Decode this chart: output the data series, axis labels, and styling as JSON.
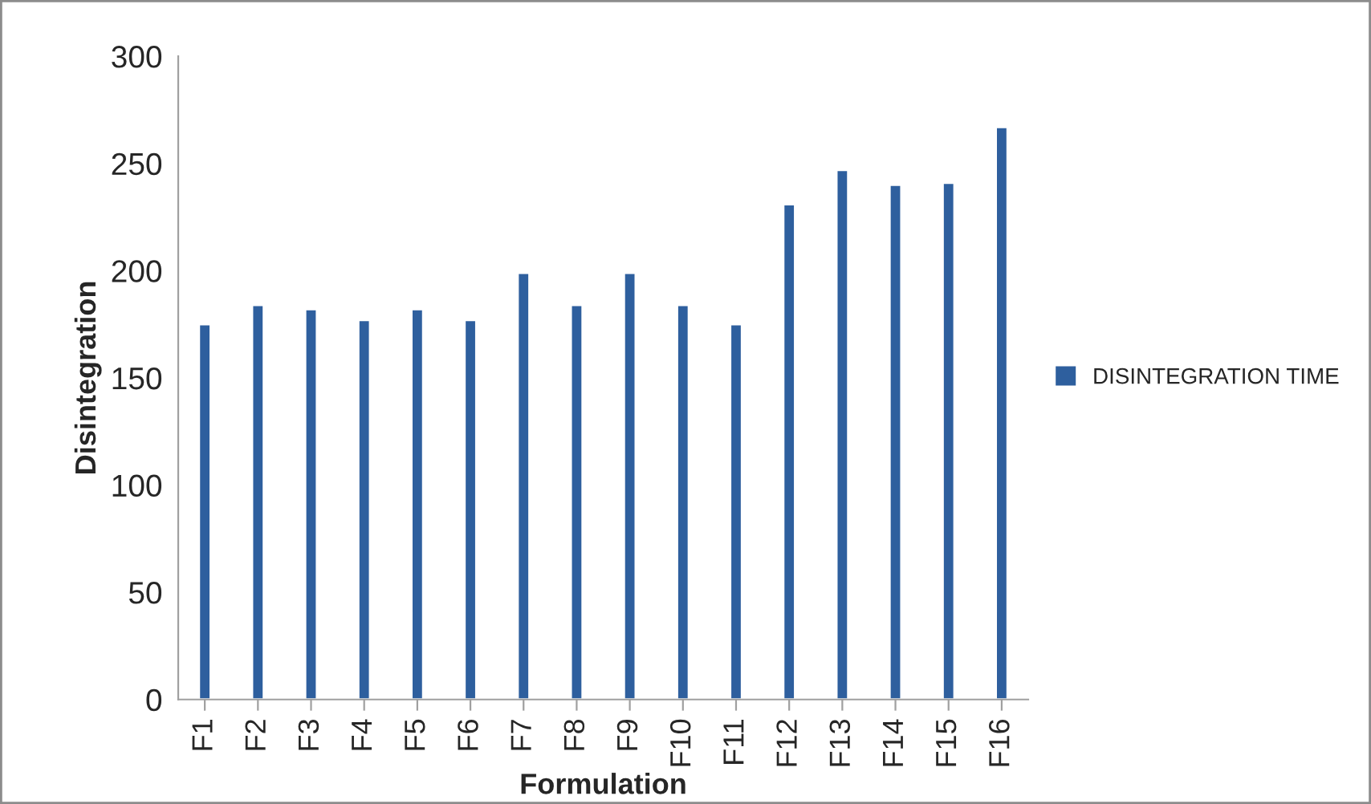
{
  "chart_data": {
    "type": "bar",
    "xlabel": "Formulation",
    "ylabel": "Disintegration",
    "categories": [
      "F1",
      "F2",
      "F3",
      "F4",
      "F5",
      "F6",
      "F7",
      "F8",
      "F9",
      "F10",
      "F11",
      "F12",
      "F13",
      "F14",
      "F15",
      "F16"
    ],
    "series": [
      {
        "name": "DISINTEGRATION TIME",
        "color": "#2e5f9e",
        "values": [
          175,
          184,
          182,
          177,
          182,
          177,
          199,
          184,
          199,
          184,
          175,
          231,
          247,
          240,
          241,
          267
        ]
      }
    ],
    "ylim": [
      0,
      300
    ],
    "yticks": [
      0,
      50,
      100,
      150,
      200,
      250,
      300
    ],
    "grid": false,
    "legend": "right"
  }
}
